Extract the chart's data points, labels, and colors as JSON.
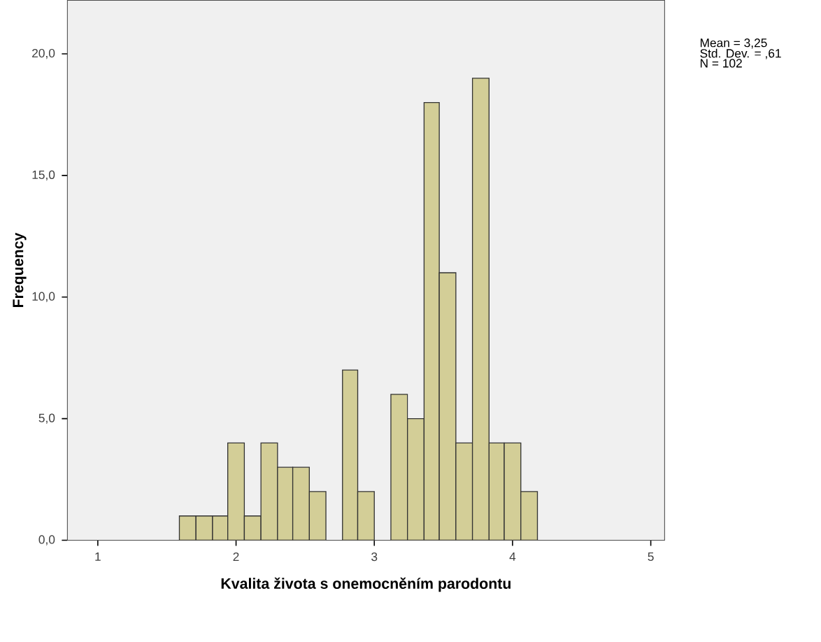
{
  "chart_data": {
    "type": "histogram",
    "xlabel": "Kvalita života s onemocněním parodontu",
    "ylabel": "Frequency",
    "bins": [
      1.59,
      1.71,
      1.83,
      1.94,
      2.06,
      2.18,
      2.3,
      2.41,
      2.53,
      2.65,
      2.77,
      2.88,
      3.0,
      3.12,
      3.24,
      3.36,
      3.47,
      3.59,
      3.71,
      3.83,
      3.94,
      4.06,
      4.18
    ],
    "values": [
      1,
      1,
      1,
      4,
      1,
      4,
      3,
      3,
      2,
      0,
      7,
      2,
      0,
      6,
      5,
      18,
      11,
      4,
      19,
      4,
      4,
      2
    ],
    "color": "#d3ce97",
    "xlim": [
      0.78,
      5.1
    ],
    "ylim": [
      0,
      22.2
    ],
    "xticks": [
      1,
      2,
      3,
      4,
      5
    ],
    "yticks": [
      {
        "value": 0,
        "label": "0,0"
      },
      {
        "value": 5,
        "label": "5,0"
      },
      {
        "value": 10,
        "label": "10,0"
      },
      {
        "value": 15,
        "label": "15,0"
      },
      {
        "value": 20,
        "label": "20,0"
      }
    ],
    "annotations": [
      "Mean = 3,25",
      "Std. Dev. = ,61",
      "N = 102"
    ]
  }
}
